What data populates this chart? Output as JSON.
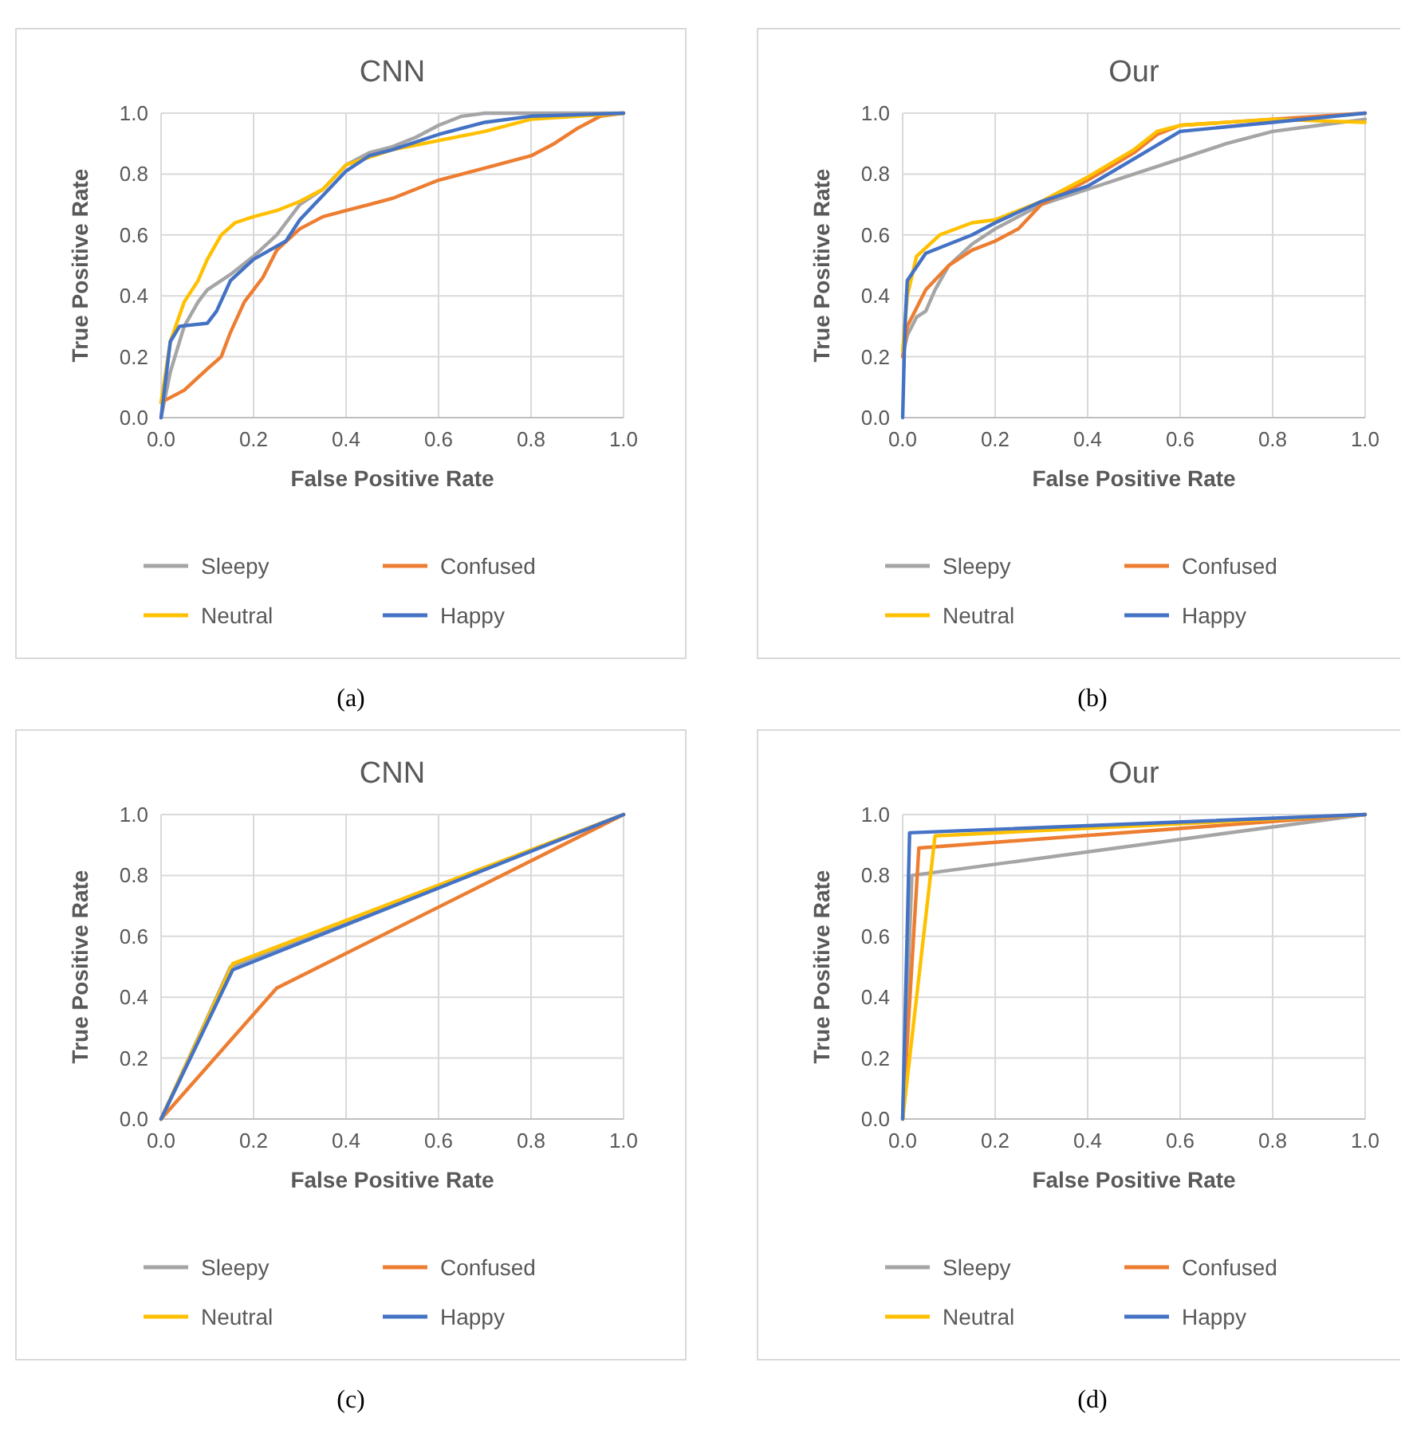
{
  "chart_data": [
    {
      "type": "line",
      "title": "CNN",
      "xlabel": "False Positive Rate",
      "ylabel": "True Positive Rate",
      "annotations": [
        "(a)"
      ],
      "grid": true,
      "legend": "bottom",
      "xlim": [
        0,
        1
      ],
      "ylim": [
        0,
        1
      ],
      "xticks": [
        {
          "value": 0,
          "label": "0.0"
        },
        {
          "value": 0.2,
          "label": "0.2"
        },
        {
          "value": 0.4,
          "label": "0.4"
        },
        {
          "value": 0.6,
          "label": "0.6"
        },
        {
          "value": 0.8,
          "label": "0.8"
        },
        {
          "value": 1,
          "label": "1.0"
        }
      ],
      "yticks": [
        {
          "value": 0,
          "label": "0.0"
        },
        {
          "value": 0.2,
          "label": "0.2"
        },
        {
          "value": 0.4,
          "label": "0.4"
        },
        {
          "value": 0.6,
          "label": "0.6"
        },
        {
          "value": 0.8,
          "label": "0.8"
        },
        {
          "value": 1,
          "label": "1.0"
        }
      ],
      "series": [
        {
          "name": "Sleepy",
          "color": "#a5a5a5",
          "x": [
            0,
            0.02,
            0.05,
            0.08,
            0.1,
            0.15,
            0.2,
            0.25,
            0.3,
            0.35,
            0.4,
            0.45,
            0.5,
            0.55,
            0.6,
            0.65,
            0.7,
            1
          ],
          "values": [
            0,
            0.15,
            0.3,
            0.38,
            0.42,
            0.47,
            0.53,
            0.6,
            0.7,
            0.75,
            0.83,
            0.87,
            0.89,
            0.92,
            0.96,
            0.99,
            1,
            1
          ]
        },
        {
          "name": "Confused",
          "color": "#ed7d31",
          "x": [
            0,
            0.05,
            0.1,
            0.13,
            0.15,
            0.18,
            0.22,
            0.25,
            0.3,
            0.35,
            0.4,
            0.45,
            0.5,
            0.55,
            0.6,
            0.7,
            0.8,
            0.85,
            0.9,
            0.95,
            1
          ],
          "values": [
            0.05,
            0.09,
            0.16,
            0.2,
            0.28,
            0.38,
            0.46,
            0.55,
            0.62,
            0.66,
            0.68,
            0.7,
            0.72,
            0.75,
            0.78,
            0.82,
            0.86,
            0.9,
            0.95,
            0.99,
            1
          ]
        },
        {
          "name": "Neutral",
          "color": "#ffc000",
          "x": [
            0,
            0.02,
            0.05,
            0.08,
            0.1,
            0.13,
            0.16,
            0.2,
            0.25,
            0.3,
            0.35,
            0.4,
            0.5,
            0.6,
            0.7,
            0.8,
            1
          ],
          "values": [
            0.05,
            0.25,
            0.38,
            0.45,
            0.52,
            0.6,
            0.64,
            0.66,
            0.68,
            0.71,
            0.75,
            0.83,
            0.88,
            0.91,
            0.94,
            0.98,
            1
          ]
        },
        {
          "name": "Happy",
          "color": "#4472c4",
          "x": [
            0,
            0.02,
            0.04,
            0.1,
            0.12,
            0.15,
            0.2,
            0.27,
            0.3,
            0.35,
            0.4,
            0.45,
            0.5,
            0.6,
            0.7,
            0.8,
            1
          ],
          "values": [
            0,
            0.25,
            0.3,
            0.31,
            0.35,
            0.45,
            0.52,
            0.58,
            0.65,
            0.73,
            0.81,
            0.86,
            0.88,
            0.93,
            0.97,
            0.99,
            1
          ]
        }
      ]
    },
    {
      "type": "line",
      "title": "Our",
      "xlabel": "False Positive Rate",
      "ylabel": "True Positive Rate",
      "annotations": [
        "(b)"
      ],
      "grid": true,
      "legend": "bottom",
      "xlim": [
        0,
        1
      ],
      "ylim": [
        0,
        1
      ],
      "xticks": [
        {
          "value": 0,
          "label": "0.0"
        },
        {
          "value": 0.2,
          "label": "0.2"
        },
        {
          "value": 0.4,
          "label": "0.4"
        },
        {
          "value": 0.6,
          "label": "0.6"
        },
        {
          "value": 0.8,
          "label": "0.8"
        },
        {
          "value": 1,
          "label": "1.0"
        }
      ],
      "yticks": [
        {
          "value": 0,
          "label": "0.0"
        },
        {
          "value": 0.2,
          "label": "0.2"
        },
        {
          "value": 0.4,
          "label": "0.4"
        },
        {
          "value": 0.6,
          "label": "0.6"
        },
        {
          "value": 0.8,
          "label": "0.8"
        },
        {
          "value": 1,
          "label": "1.0"
        }
      ],
      "series": [
        {
          "name": "Sleepy",
          "color": "#a5a5a5",
          "x": [
            0,
            0.01,
            0.03,
            0.05,
            0.07,
            0.1,
            0.15,
            0.2,
            0.3,
            0.4,
            0.5,
            0.6,
            0.7,
            0.8,
            0.9,
            1
          ],
          "values": [
            0.2,
            0.27,
            0.33,
            0.35,
            0.42,
            0.5,
            0.57,
            0.62,
            0.7,
            0.75,
            0.8,
            0.85,
            0.9,
            0.94,
            0.96,
            0.98
          ]
        },
        {
          "name": "Confused",
          "color": "#ed7d31",
          "x": [
            0,
            0.01,
            0.05,
            0.1,
            0.15,
            0.2,
            0.25,
            0.3,
            0.4,
            0.5,
            0.55,
            0.6,
            0.8,
            1
          ],
          "values": [
            0.2,
            0.3,
            0.42,
            0.5,
            0.55,
            0.58,
            0.62,
            0.7,
            0.78,
            0.87,
            0.93,
            0.96,
            0.98,
            1
          ]
        },
        {
          "name": "Neutral",
          "color": "#ffc000",
          "x": [
            0,
            0.01,
            0.03,
            0.08,
            0.15,
            0.2,
            0.3,
            0.4,
            0.5,
            0.55,
            0.6,
            0.8,
            1
          ],
          "values": [
            0.22,
            0.4,
            0.53,
            0.6,
            0.64,
            0.65,
            0.71,
            0.79,
            0.88,
            0.94,
            0.96,
            0.98,
            0.97
          ]
        },
        {
          "name": "Happy",
          "color": "#4472c4",
          "x": [
            0,
            0.005,
            0.01,
            0.05,
            0.1,
            0.15,
            0.2,
            0.3,
            0.4,
            0.5,
            0.6,
            0.8,
            1
          ],
          "values": [
            0,
            0.3,
            0.45,
            0.54,
            0.57,
            0.6,
            0.64,
            0.71,
            0.76,
            0.85,
            0.94,
            0.97,
            1
          ]
        }
      ]
    },
    {
      "type": "line",
      "title": "CNN",
      "xlabel": "False Positive Rate",
      "ylabel": "True Positive Rate",
      "annotations": [
        "(c)"
      ],
      "grid": true,
      "legend": "bottom",
      "xlim": [
        0,
        1
      ],
      "ylim": [
        0,
        1
      ],
      "xticks": [
        {
          "value": 0,
          "label": "0.0"
        },
        {
          "value": 0.2,
          "label": "0.2"
        },
        {
          "value": 0.4,
          "label": "0.4"
        },
        {
          "value": 0.6,
          "label": "0.6"
        },
        {
          "value": 0.8,
          "label": "0.8"
        },
        {
          "value": 1,
          "label": "1.0"
        }
      ],
      "yticks": [
        {
          "value": 0,
          "label": "0.0"
        },
        {
          "value": 0.2,
          "label": "0.2"
        },
        {
          "value": 0.4,
          "label": "0.4"
        },
        {
          "value": 0.6,
          "label": "0.6"
        },
        {
          "value": 0.8,
          "label": "0.8"
        },
        {
          "value": 1,
          "label": "1.0"
        }
      ],
      "series": [
        {
          "name": "Sleepy",
          "color": "#a5a5a5",
          "x": [
            0,
            0.15,
            1
          ],
          "values": [
            0,
            0.5,
            1
          ]
        },
        {
          "name": "Confused",
          "color": "#ed7d31",
          "x": [
            0,
            0.25,
            1
          ],
          "values": [
            0,
            0.43,
            1
          ]
        },
        {
          "name": "Neutral",
          "color": "#ffc000",
          "x": [
            0,
            0.155,
            1
          ],
          "values": [
            0,
            0.51,
            1
          ]
        },
        {
          "name": "Happy",
          "color": "#4472c4",
          "x": [
            0,
            0.155,
            1
          ],
          "values": [
            0,
            0.49,
            1
          ]
        }
      ]
    },
    {
      "type": "line",
      "title": "Our",
      "xlabel": "False Positive Rate",
      "ylabel": "True Positive Rate",
      "annotations": [
        "(d)"
      ],
      "grid": true,
      "legend": "bottom",
      "xlim": [
        0,
        1
      ],
      "ylim": [
        0,
        1
      ],
      "xticks": [
        {
          "value": 0,
          "label": "0.0"
        },
        {
          "value": 0.2,
          "label": "0.2"
        },
        {
          "value": 0.4,
          "label": "0.4"
        },
        {
          "value": 0.6,
          "label": "0.6"
        },
        {
          "value": 0.8,
          "label": "0.8"
        },
        {
          "value": 1,
          "label": "1.0"
        }
      ],
      "yticks": [
        {
          "value": 0,
          "label": "0.0"
        },
        {
          "value": 0.2,
          "label": "0.2"
        },
        {
          "value": 0.4,
          "label": "0.4"
        },
        {
          "value": 0.6,
          "label": "0.6"
        },
        {
          "value": 0.8,
          "label": "0.8"
        },
        {
          "value": 1,
          "label": "1.0"
        }
      ],
      "series": [
        {
          "name": "Sleepy",
          "color": "#a5a5a5",
          "x": [
            0,
            0.02,
            1
          ],
          "values": [
            0,
            0.8,
            1
          ]
        },
        {
          "name": "Confused",
          "color": "#ed7d31",
          "x": [
            0,
            0.035,
            1
          ],
          "values": [
            0,
            0.89,
            1
          ]
        },
        {
          "name": "Neutral",
          "color": "#ffc000",
          "x": [
            0,
            0.07,
            1
          ],
          "values": [
            0,
            0.93,
            1
          ]
        },
        {
          "name": "Happy",
          "color": "#4472c4",
          "x": [
            0,
            0.015,
            1
          ],
          "values": [
            0,
            0.94,
            1
          ]
        }
      ]
    }
  ]
}
